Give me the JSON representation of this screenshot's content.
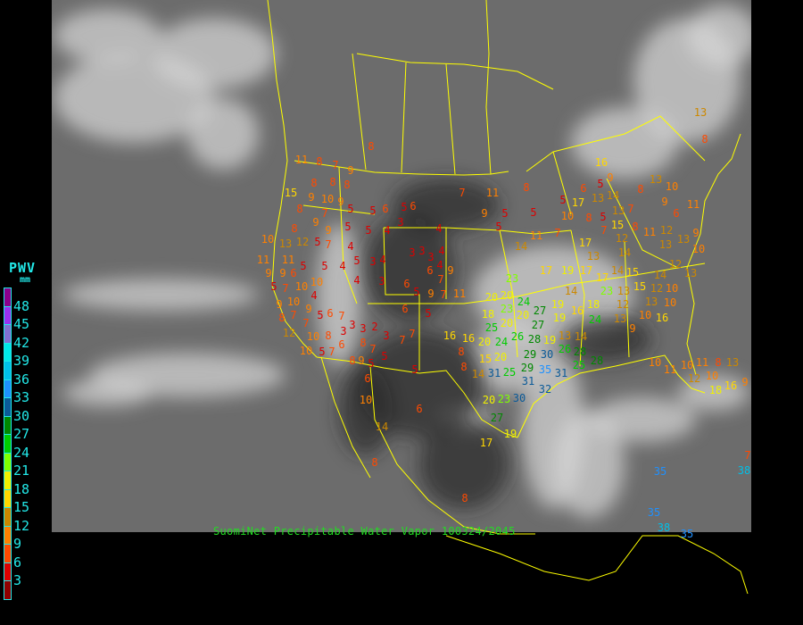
{
  "legend": {
    "title": "PWV",
    "unit": "mm",
    "labels": [
      "48",
      "45",
      "42",
      "39",
      "36",
      "33",
      "30",
      "27",
      "24",
      "21",
      "18",
      "15",
      "12",
      "9",
      "6",
      "3"
    ],
    "colors": [
      "#8b008b",
      "#9a30f0",
      "#8070d0",
      "#00e8e8",
      "#00c0e8",
      "#1e90ff",
      "#0b5a98",
      "#008800",
      "#00cc00",
      "#80ff00",
      "#f0f000",
      "#ffd700",
      "#cc8800",
      "#ff8000",
      "#ff4a00",
      "#dd0000",
      "#900000"
    ]
  },
  "caption": "SuomiNet Precipitable Water Vapor 100324/2045",
  "colors": {
    "boundaries": "#ffff00",
    "background": "#000000",
    "caption": "#22dd22",
    "legend_text": "#22e8e8"
  },
  "stations": [
    8,
    11,
    8,
    7,
    9,
    15,
    8,
    8,
    8,
    9,
    10,
    9,
    8,
    7,
    9,
    9,
    5,
    5,
    6,
    5,
    6,
    3,
    5,
    5,
    4,
    4,
    8,
    10,
    13,
    12,
    5,
    7,
    4,
    11,
    11,
    5,
    9,
    9,
    6,
    5,
    4,
    5,
    3,
    4,
    3,
    3,
    3,
    4,
    4,
    6,
    7,
    9,
    5,
    7,
    10,
    10,
    4,
    10,
    4,
    3,
    6,
    5,
    9,
    7,
    11,
    9,
    7,
    9,
    8,
    7,
    5,
    6,
    7,
    12,
    10,
    8,
    10,
    5,
    7,
    6,
    3,
    3,
    3,
    2,
    8,
    7,
    3,
    6,
    5,
    7,
    7,
    5,
    9,
    8,
    5,
    5,
    6,
    10,
    6,
    14,
    8,
    8,
    17,
    11,
    7,
    9,
    5,
    5,
    5,
    8,
    10,
    11,
    14,
    7,
    17,
    13,
    17,
    17,
    17,
    19,
    23,
    20,
    20,
    23,
    24,
    18,
    20,
    20,
    25,
    27,
    27,
    26,
    24,
    28,
    29,
    20,
    20,
    16,
    19,
    19,
    16,
    14,
    18,
    29,
    25,
    30,
    31,
    31,
    35,
    31,
    32,
    30,
    26,
    28,
    25,
    28,
    19,
    13,
    14,
    16,
    8,
    8,
    14,
    15,
    20,
    23,
    27,
    19,
    24,
    23,
    14,
    13,
    15,
    12,
    12,
    13,
    10,
    12,
    13,
    15,
    11,
    13,
    13,
    10,
    9,
    11,
    12,
    9,
    10,
    6,
    8,
    12,
    15,
    14,
    16,
    13,
    13,
    13,
    5,
    14,
    8,
    8,
    17,
    7,
    7,
    9,
    5,
    6,
    5,
    8,
    13,
    13,
    10,
    11,
    10,
    11,
    12,
    10,
    18,
    16,
    9,
    8,
    16,
    10,
    9,
    10,
    14,
    13,
    7,
    38,
    35,
    35,
    38,
    35,
    26
  ]
}
